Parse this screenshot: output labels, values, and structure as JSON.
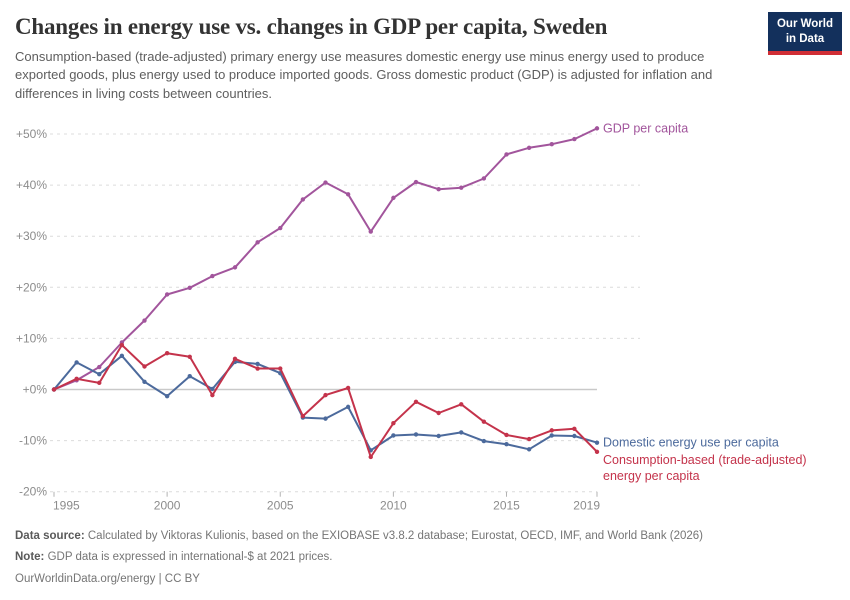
{
  "header": {
    "title": "Changes in energy use vs. changes in GDP per capita, Sweden",
    "subtitle": "Consumption-based (trade-adjusted) primary energy use measures domestic energy use minus energy used to produce exported goods, plus energy used to produce imported goods. Gross domestic product (GDP) is adjusted for inflation and differences in living costs between countries.",
    "logo": {
      "line1": "Our World",
      "line2": "in Data",
      "bg": "#13305c",
      "bar": "#d02e35"
    }
  },
  "chart_data": {
    "type": "line",
    "title": "Changes in energy use vs. changes in GDP per capita, Sweden",
    "x": [
      1995,
      1996,
      1997,
      1998,
      1999,
      2000,
      2001,
      2002,
      2003,
      2004,
      2005,
      2006,
      2007,
      2008,
      2009,
      2010,
      2011,
      2012,
      2013,
      2014,
      2015,
      2016,
      2017,
      2018,
      2019
    ],
    "series": [
      {
        "name": "GDP per capita",
        "color": "#a2559c",
        "label_lines": [
          "GDP per capita"
        ],
        "values": [
          0,
          1.8,
          4.4,
          9.2,
          13.5,
          18.6,
          19.9,
          22.2,
          23.9,
          28.8,
          31.6,
          37.2,
          40.5,
          38.2,
          30.9,
          37.5,
          40.6,
          39.2,
          39.5,
          41.3,
          46.0,
          47.3,
          48.0,
          49.0,
          51.1
        ]
      },
      {
        "name": "Domestic energy use per capita",
        "color": "#4c6a9c",
        "label_lines": [
          "Domestic energy use per capita"
        ],
        "values": [
          0,
          5.3,
          3.0,
          6.6,
          1.5,
          -1.3,
          2.6,
          0.1,
          5.4,
          5.0,
          3.2,
          -5.5,
          -5.7,
          -3.4,
          -11.9,
          -9.0,
          -8.8,
          -9.1,
          -8.4,
          -10.1,
          -10.7,
          -11.7,
          -9.0,
          -9.1,
          -10.4
        ]
      },
      {
        "name": "Consumption-based (trade-adjusted) energy per capita",
        "color": "#c4334b",
        "label_lines": [
          "Consumption-based (trade-adjusted)",
          "energy per capita"
        ],
        "values": [
          0,
          2.1,
          1.3,
          8.7,
          4.5,
          7.1,
          6.4,
          -1.1,
          6.0,
          4.1,
          4.1,
          -5.2,
          -1.1,
          0.3,
          -13.2,
          -6.6,
          -2.4,
          -4.6,
          -2.9,
          -6.3,
          -8.9,
          -9.7,
          -8.0,
          -7.7,
          -12.2
        ]
      }
    ],
    "ylim": [
      -20,
      50
    ],
    "yticks": [
      50,
      40,
      30,
      20,
      10,
      0,
      -10,
      -20
    ],
    "ytick_labels": [
      "+50%",
      "+40%",
      "+30%",
      "+20%",
      "+10%",
      "+0%",
      "-10%",
      "-20%"
    ],
    "xticks": [
      1995,
      2000,
      2005,
      2010,
      2015,
      2019
    ],
    "xtick_labels": [
      "1995",
      "2000",
      "2005",
      "2010",
      "2015",
      "2019"
    ],
    "grid": "horizontal-dashed",
    "legend_position": "right-of-line-end",
    "axis_color": "#8c8c8c",
    "gridline_color": "#dcdcdc",
    "zeroline_color": "#c9c9c9"
  },
  "footer": {
    "source_label": "Data source:",
    "source_text": " Calculated by Viktoras Kulionis, based on the EXIOBASE v3.8.2 database; Eurostat, OECD, IMF, and World Bank (2026)",
    "note_label": "Note:",
    "note_text": " GDP data is expressed in international-$ at 2021 prices.",
    "link_text": "OurWorldinData.org/energy | CC BY"
  }
}
